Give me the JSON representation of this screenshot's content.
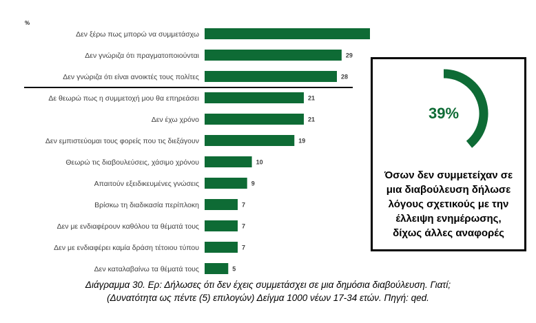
{
  "chart_data": {
    "type": "bar",
    "orientation": "horizontal",
    "unit_label": "%",
    "categories": [
      "Δεν ξέρω πως μπορώ να συμμετάσχω",
      "Δεν γνώριζα ότι πραγματοποιούνται",
      "Δεν γνώριζα ότι είναι ανοικτές τους πολίτες",
      "Δε θεωρώ πως η συμμετοχή μου θα επηρεάσει",
      "Δεν έχω χρόνο",
      "Δεν εμπιστεύομαι τους φορείς που τις διεξάγουν",
      "Θεωρώ τις διαβουλεύσεις, χάσιμο χρόνου",
      "Απαιτούν εξειδικευμένες γνώσεις",
      "Βρίσκω τη διαδικασία περίπλοκη",
      "Δεν με ενδιαφέρουν καθόλου τα θέματά τους",
      "Δεν με ενδιαφέρει καμία δράση τέτοιου τύπου",
      "Δεν καταλαβαίνω τα θέματά τους"
    ],
    "values": [
      35,
      29,
      28,
      21,
      21,
      19,
      10,
      9,
      7,
      7,
      7,
      5
    ],
    "bar_color": "#0e6b35",
    "separator_after_index": 2
  },
  "callout": {
    "percent": "39%",
    "percent_value": 39,
    "ring_color": "#0e6b35",
    "text_lines": [
      "Όσων δεν συμμετείχαν σε",
      "μια διαβούλευση δήλωσε",
      "λόγους σχετικούς με την",
      "έλλειψη ενημέρωσης,",
      "δίχως άλλες αναφορές"
    ]
  },
  "caption": {
    "line1": "Διάγραμμα 30. Ερ: Δήλωσες ότι δεν έχεις συμμετάσχει σε μια δημόσια διαβούλευση. Γιατί;",
    "line2": "(Δυνατότητα ως πέντε (5) επιλογών) Δείγμα 1000 νέων 17-34 ετών. Πηγή: qed."
  }
}
